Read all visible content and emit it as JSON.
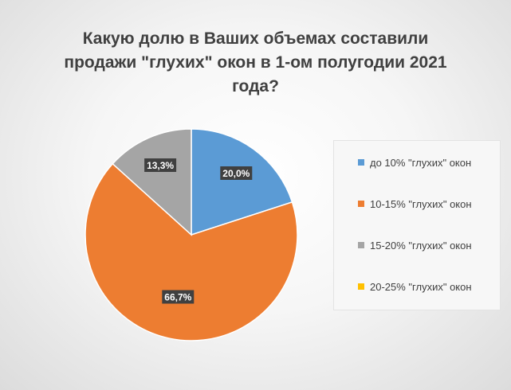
{
  "chart_data": {
    "type": "pie",
    "title": "Какую долю в Ваших объемах составили продажи \"глухих\" окон в 1-ом полугодии 2021 года?",
    "title_lines": [
      "Какую долю в Ваших объемах составили",
      "продажи \"глухих\" окон в 1-ом полугодии 2021",
      "года?"
    ],
    "categories": [
      "до 10% \"глухих\" окон",
      "10-15% \"глухих\" окон",
      "15-20% \"глухих\" окон",
      "20-25% \"глухих\" окон"
    ],
    "values": [
      20.0,
      66.7,
      13.3,
      0.0
    ],
    "data_labels": [
      "20,0%",
      "66,7%",
      "13,3%",
      ""
    ],
    "colors": [
      "#5B9BD5",
      "#ED7D31",
      "#A5A5A5",
      "#FFC000"
    ],
    "legend_position": "right"
  }
}
